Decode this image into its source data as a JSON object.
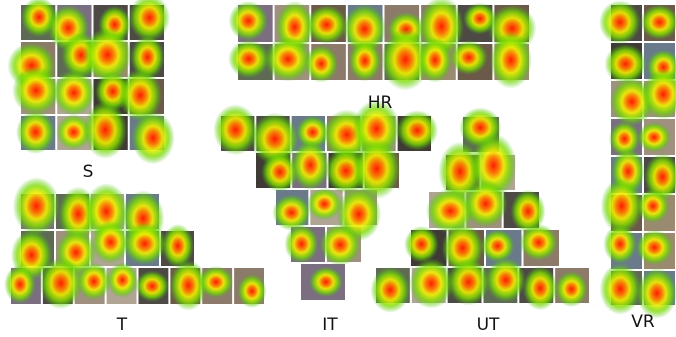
{
  "panels": [
    {
      "label": "S"
    },
    {
      "label": "HR"
    },
    {
      "label": "T"
    },
    {
      "label": "IT"
    },
    {
      "label": "UT"
    },
    {
      "label": "VR"
    }
  ]
}
